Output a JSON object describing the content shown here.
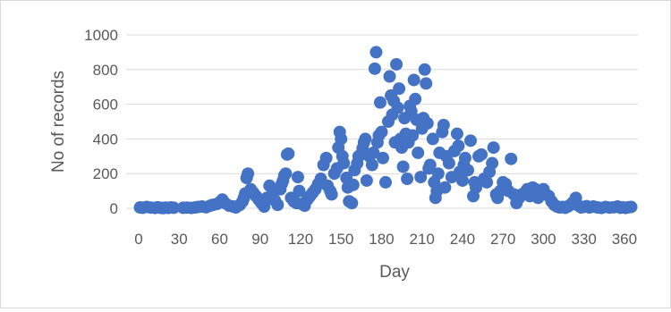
{
  "chart_data": {
    "type": "scatter",
    "title": "",
    "xlabel": "Day",
    "ylabel": "No of records",
    "xlim": [
      0,
      370
    ],
    "ylim": [
      0,
      1000
    ],
    "x_ticks": [
      0,
      30,
      60,
      90,
      120,
      150,
      180,
      210,
      240,
      270,
      300,
      330,
      360
    ],
    "y_ticks": [
      0,
      200,
      400,
      600,
      800,
      1000
    ],
    "grid": "horizontal",
    "legend": "none",
    "marker_color": "#4472c4",
    "points": [
      [
        1,
        5
      ],
      [
        3,
        3
      ],
      [
        6,
        8
      ],
      [
        9,
        4
      ],
      [
        12,
        2
      ],
      [
        14,
        6
      ],
      [
        16,
        3
      ],
      [
        18,
        1
      ],
      [
        20,
        4
      ],
      [
        22,
        2
      ],
      [
        24,
        5
      ],
      [
        26,
        3
      ],
      [
        33,
        3
      ],
      [
        36,
        4
      ],
      [
        39,
        2
      ],
      [
        42,
        5
      ],
      [
        44,
        8
      ],
      [
        47,
        10
      ],
      [
        50,
        6
      ],
      [
        53,
        15
      ],
      [
        55,
        20
      ],
      [
        58,
        25
      ],
      [
        60,
        35
      ],
      [
        62,
        50
      ],
      [
        64,
        30
      ],
      [
        67,
        15
      ],
      [
        70,
        10
      ],
      [
        72,
        5
      ],
      [
        75,
        20
      ],
      [
        77,
        40
      ],
      [
        78,
        60
      ],
      [
        79,
        85
      ],
      [
        80,
        175
      ],
      [
        81,
        200
      ],
      [
        83,
        110
      ],
      [
        85,
        90
      ],
      [
        87,
        70
      ],
      [
        89,
        50
      ],
      [
        91,
        30
      ],
      [
        93,
        10
      ],
      [
        95,
        60
      ],
      [
        97,
        130
      ],
      [
        99,
        80
      ],
      [
        101,
        45
      ],
      [
        103,
        20
      ],
      [
        105,
        110
      ],
      [
        106,
        140
      ],
      [
        107,
        160
      ],
      [
        108,
        190
      ],
      [
        109,
        200
      ],
      [
        110,
        310
      ],
      [
        111,
        315
      ],
      [
        113,
        60
      ],
      [
        115,
        40
      ],
      [
        117,
        30
      ],
      [
        118,
        180
      ],
      [
        119,
        100
      ],
      [
        121,
        25
      ],
      [
        123,
        15
      ],
      [
        125,
        50
      ],
      [
        127,
        70
      ],
      [
        129,
        90
      ],
      [
        131,
        110
      ],
      [
        133,
        140
      ],
      [
        135,
        170
      ],
      [
        137,
        250
      ],
      [
        139,
        290
      ],
      [
        140,
        130
      ],
      [
        142,
        100
      ],
      [
        143,
        80
      ],
      [
        145,
        200
      ],
      [
        147,
        230
      ],
      [
        148,
        350
      ],
      [
        149,
        440
      ],
      [
        150,
        400
      ],
      [
        151,
        300
      ],
      [
        152,
        260
      ],
      [
        154,
        175
      ],
      [
        155,
        120
      ],
      [
        156,
        40
      ],
      [
        158,
        30
      ],
      [
        159,
        135
      ],
      [
        160,
        220
      ],
      [
        162,
        260
      ],
      [
        163,
        300
      ],
      [
        165,
        310
      ],
      [
        166,
        345
      ],
      [
        167,
        380
      ],
      [
        168,
        400
      ],
      [
        169,
        160
      ],
      [
        170,
        310
      ],
      [
        171,
        300
      ],
      [
        173,
        250
      ],
      [
        174,
        320
      ],
      [
        175,
        805
      ],
      [
        176,
        900
      ],
      [
        177,
        380
      ],
      [
        178,
        420
      ],
      [
        179,
        610
      ],
      [
        180,
        440
      ],
      [
        181,
        290
      ],
      [
        183,
        150
      ],
      [
        185,
        500
      ],
      [
        186,
        760
      ],
      [
        187,
        650
      ],
      [
        188,
        540
      ],
      [
        189,
        620
      ],
      [
        190,
        380
      ],
      [
        191,
        830
      ],
      [
        192,
        580
      ],
      [
        193,
        690
      ],
      [
        194,
        400
      ],
      [
        195,
        350
      ],
      [
        196,
        240
      ],
      [
        197,
        520
      ],
      [
        198,
        430
      ],
      [
        199,
        170
      ],
      [
        200,
        380
      ],
      [
        201,
        590
      ],
      [
        202,
        560
      ],
      [
        203,
        420
      ],
      [
        204,
        740
      ],
      [
        205,
        630
      ],
      [
        206,
        510
      ],
      [
        207,
        320
      ],
      [
        209,
        180
      ],
      [
        210,
        460
      ],
      [
        211,
        520
      ],
      [
        212,
        800
      ],
      [
        213,
        720
      ],
      [
        214,
        490
      ],
      [
        215,
        230
      ],
      [
        216,
        250
      ],
      [
        218,
        400
      ],
      [
        219,
        150
      ],
      [
        220,
        60
      ],
      [
        221,
        100
      ],
      [
        222,
        200
      ],
      [
        223,
        320
      ],
      [
        225,
        440
      ],
      [
        226,
        480
      ],
      [
        227,
        120
      ],
      [
        228,
        300
      ],
      [
        230,
        260
      ],
      [
        232,
        180
      ],
      [
        234,
        330
      ],
      [
        236,
        430
      ],
      [
        237,
        360
      ],
      [
        238,
        210
      ],
      [
        240,
        160
      ],
      [
        241,
        250
      ],
      [
        242,
        290
      ],
      [
        244,
        220
      ],
      [
        246,
        390
      ],
      [
        248,
        70
      ],
      [
        249,
        150
      ],
      [
        250,
        120
      ],
      [
        252,
        300
      ],
      [
        254,
        310
      ],
      [
        256,
        170
      ],
      [
        258,
        150
      ],
      [
        260,
        210
      ],
      [
        262,
        260
      ],
      [
        263,
        350
      ],
      [
        265,
        80
      ],
      [
        266,
        60
      ],
      [
        268,
        100
      ],
      [
        270,
        150
      ],
      [
        272,
        140
      ],
      [
        274,
        100
      ],
      [
        276,
        285
      ],
      [
        278,
        80
      ],
      [
        280,
        30
      ],
      [
        282,
        60
      ],
      [
        284,
        80
      ],
      [
        286,
        90
      ],
      [
        288,
        110
      ],
      [
        290,
        70
      ],
      [
        292,
        120
      ],
      [
        294,
        110
      ],
      [
        296,
        60
      ],
      [
        298,
        90
      ],
      [
        300,
        110
      ],
      [
        302,
        80
      ],
      [
        304,
        70
      ],
      [
        306,
        40
      ],
      [
        308,
        20
      ],
      [
        310,
        10
      ],
      [
        312,
        5
      ],
      [
        314,
        8
      ],
      [
        316,
        3
      ],
      [
        318,
        10
      ],
      [
        320,
        20
      ],
      [
        322,
        35
      ],
      [
        324,
        60
      ],
      [
        326,
        15
      ],
      [
        328,
        5
      ],
      [
        330,
        8
      ],
      [
        332,
        12
      ],
      [
        334,
        5
      ],
      [
        337,
        10
      ],
      [
        340,
        5
      ],
      [
        343,
        2
      ],
      [
        346,
        8
      ],
      [
        349,
        4
      ],
      [
        352,
        6
      ],
      [
        355,
        10
      ],
      [
        357,
        3
      ],
      [
        359,
        5
      ],
      [
        361,
        2
      ],
      [
        363,
        6
      ],
      [
        365,
        8
      ]
    ]
  }
}
